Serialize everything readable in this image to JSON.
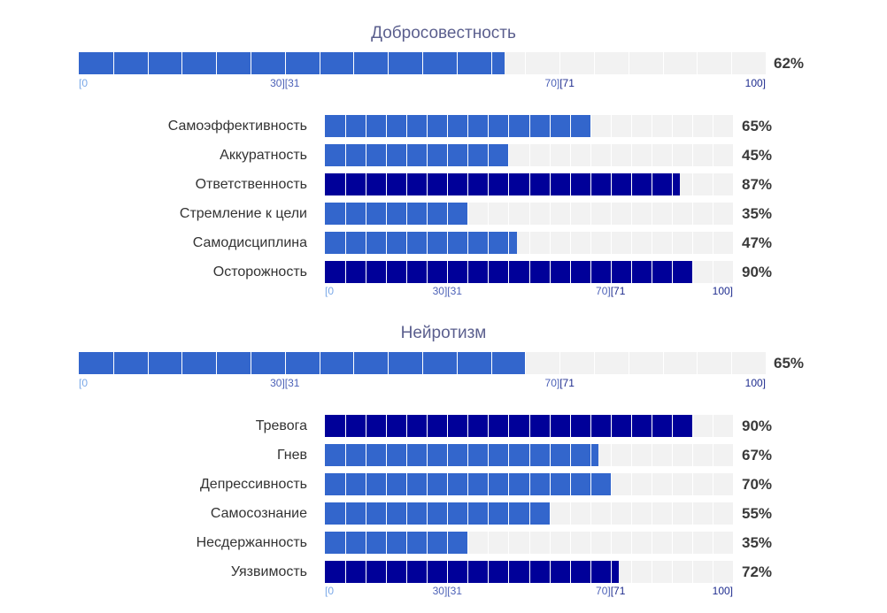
{
  "colors": {
    "light_fill": "#3366cc",
    "dark_fill": "#000099",
    "track": "#f2f2f2",
    "title": "#5b5f8e"
  },
  "scale_ticks": {
    "start": "[0",
    "low_end": "30]",
    "mid_start": "[31",
    "mid_end": "70]",
    "high_start": "[71",
    "end": "100]"
  },
  "chart_data": [
    {
      "type": "bar",
      "title": "Добросовестность",
      "xlim": [
        0,
        100
      ],
      "overall": {
        "value": 62,
        "label": "62%"
      },
      "categories": [
        "Самоэффективность",
        "Аккуратность",
        "Ответственность",
        "Стремление к цели",
        "Самодисциплина",
        "Осторожность"
      ],
      "values": [
        65,
        45,
        87,
        35,
        47,
        90
      ],
      "value_labels": [
        "65%",
        "45%",
        "87%",
        "35%",
        "47%",
        "90%"
      ],
      "band_boundaries": [
        30,
        70
      ]
    },
    {
      "type": "bar",
      "title": "Нейротизм",
      "xlim": [
        0,
        100
      ],
      "overall": {
        "value": 65,
        "label": "65%"
      },
      "categories": [
        "Тревога",
        "Гнев",
        "Депрессивность",
        "Самосознание",
        "Несдержанность",
        "Уязвимость"
      ],
      "values": [
        90,
        67,
        70,
        55,
        35,
        72
      ],
      "value_labels": [
        "90%",
        "67%",
        "70%",
        "55%",
        "35%",
        "72%"
      ],
      "band_boundaries": [
        30,
        70
      ]
    }
  ]
}
